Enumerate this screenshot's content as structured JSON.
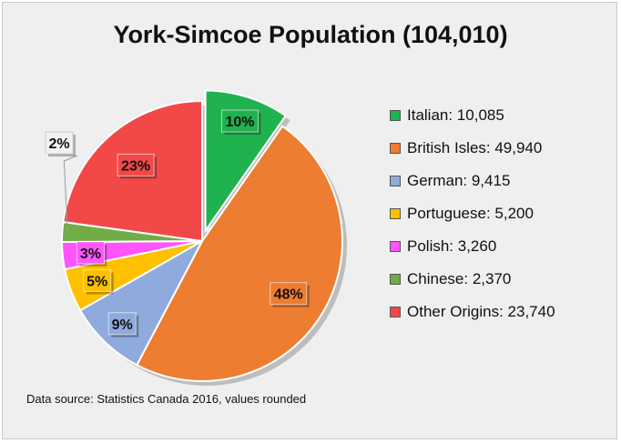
{
  "chart_data": {
    "type": "pie",
    "title": "York-Simcoe Population (104,010)",
    "source_note": "Data source: Statistics Canada 2016, values rounded",
    "slices": [
      {
        "label": "Italian",
        "value": 10085,
        "display": "Italian: 10,085",
        "percent_label": "10%",
        "color": "#1fb24f",
        "exploded": true
      },
      {
        "label": "British Isles",
        "value": 49940,
        "display": "British Isles: 49,940",
        "percent_label": "48%",
        "color": "#ed7d31",
        "exploded": false
      },
      {
        "label": "German",
        "value": 9415,
        "display": "German: 9,415",
        "percent_label": "9%",
        "color": "#8faadc",
        "exploded": false
      },
      {
        "label": "Portuguese",
        "value": 5200,
        "display": "Portuguese: 5,200",
        "percent_label": "5%",
        "color": "#ffc000",
        "exploded": false
      },
      {
        "label": "Polish",
        "value": 3260,
        "display": "Polish: 3,260",
        "percent_label": "3%",
        "color": "#ff55ff",
        "exploded": false
      },
      {
        "label": "Chinese",
        "value": 2370,
        "display": "Chinese: 2,370",
        "percent_label": "2%",
        "color": "#70ad47",
        "exploded": false
      },
      {
        "label": "Other Origins",
        "value": 23740,
        "display": "Other Origins: 23,740",
        "percent_label": "23%",
        "color": "#f24848",
        "exploded": false
      }
    ],
    "legend_position": "right"
  }
}
